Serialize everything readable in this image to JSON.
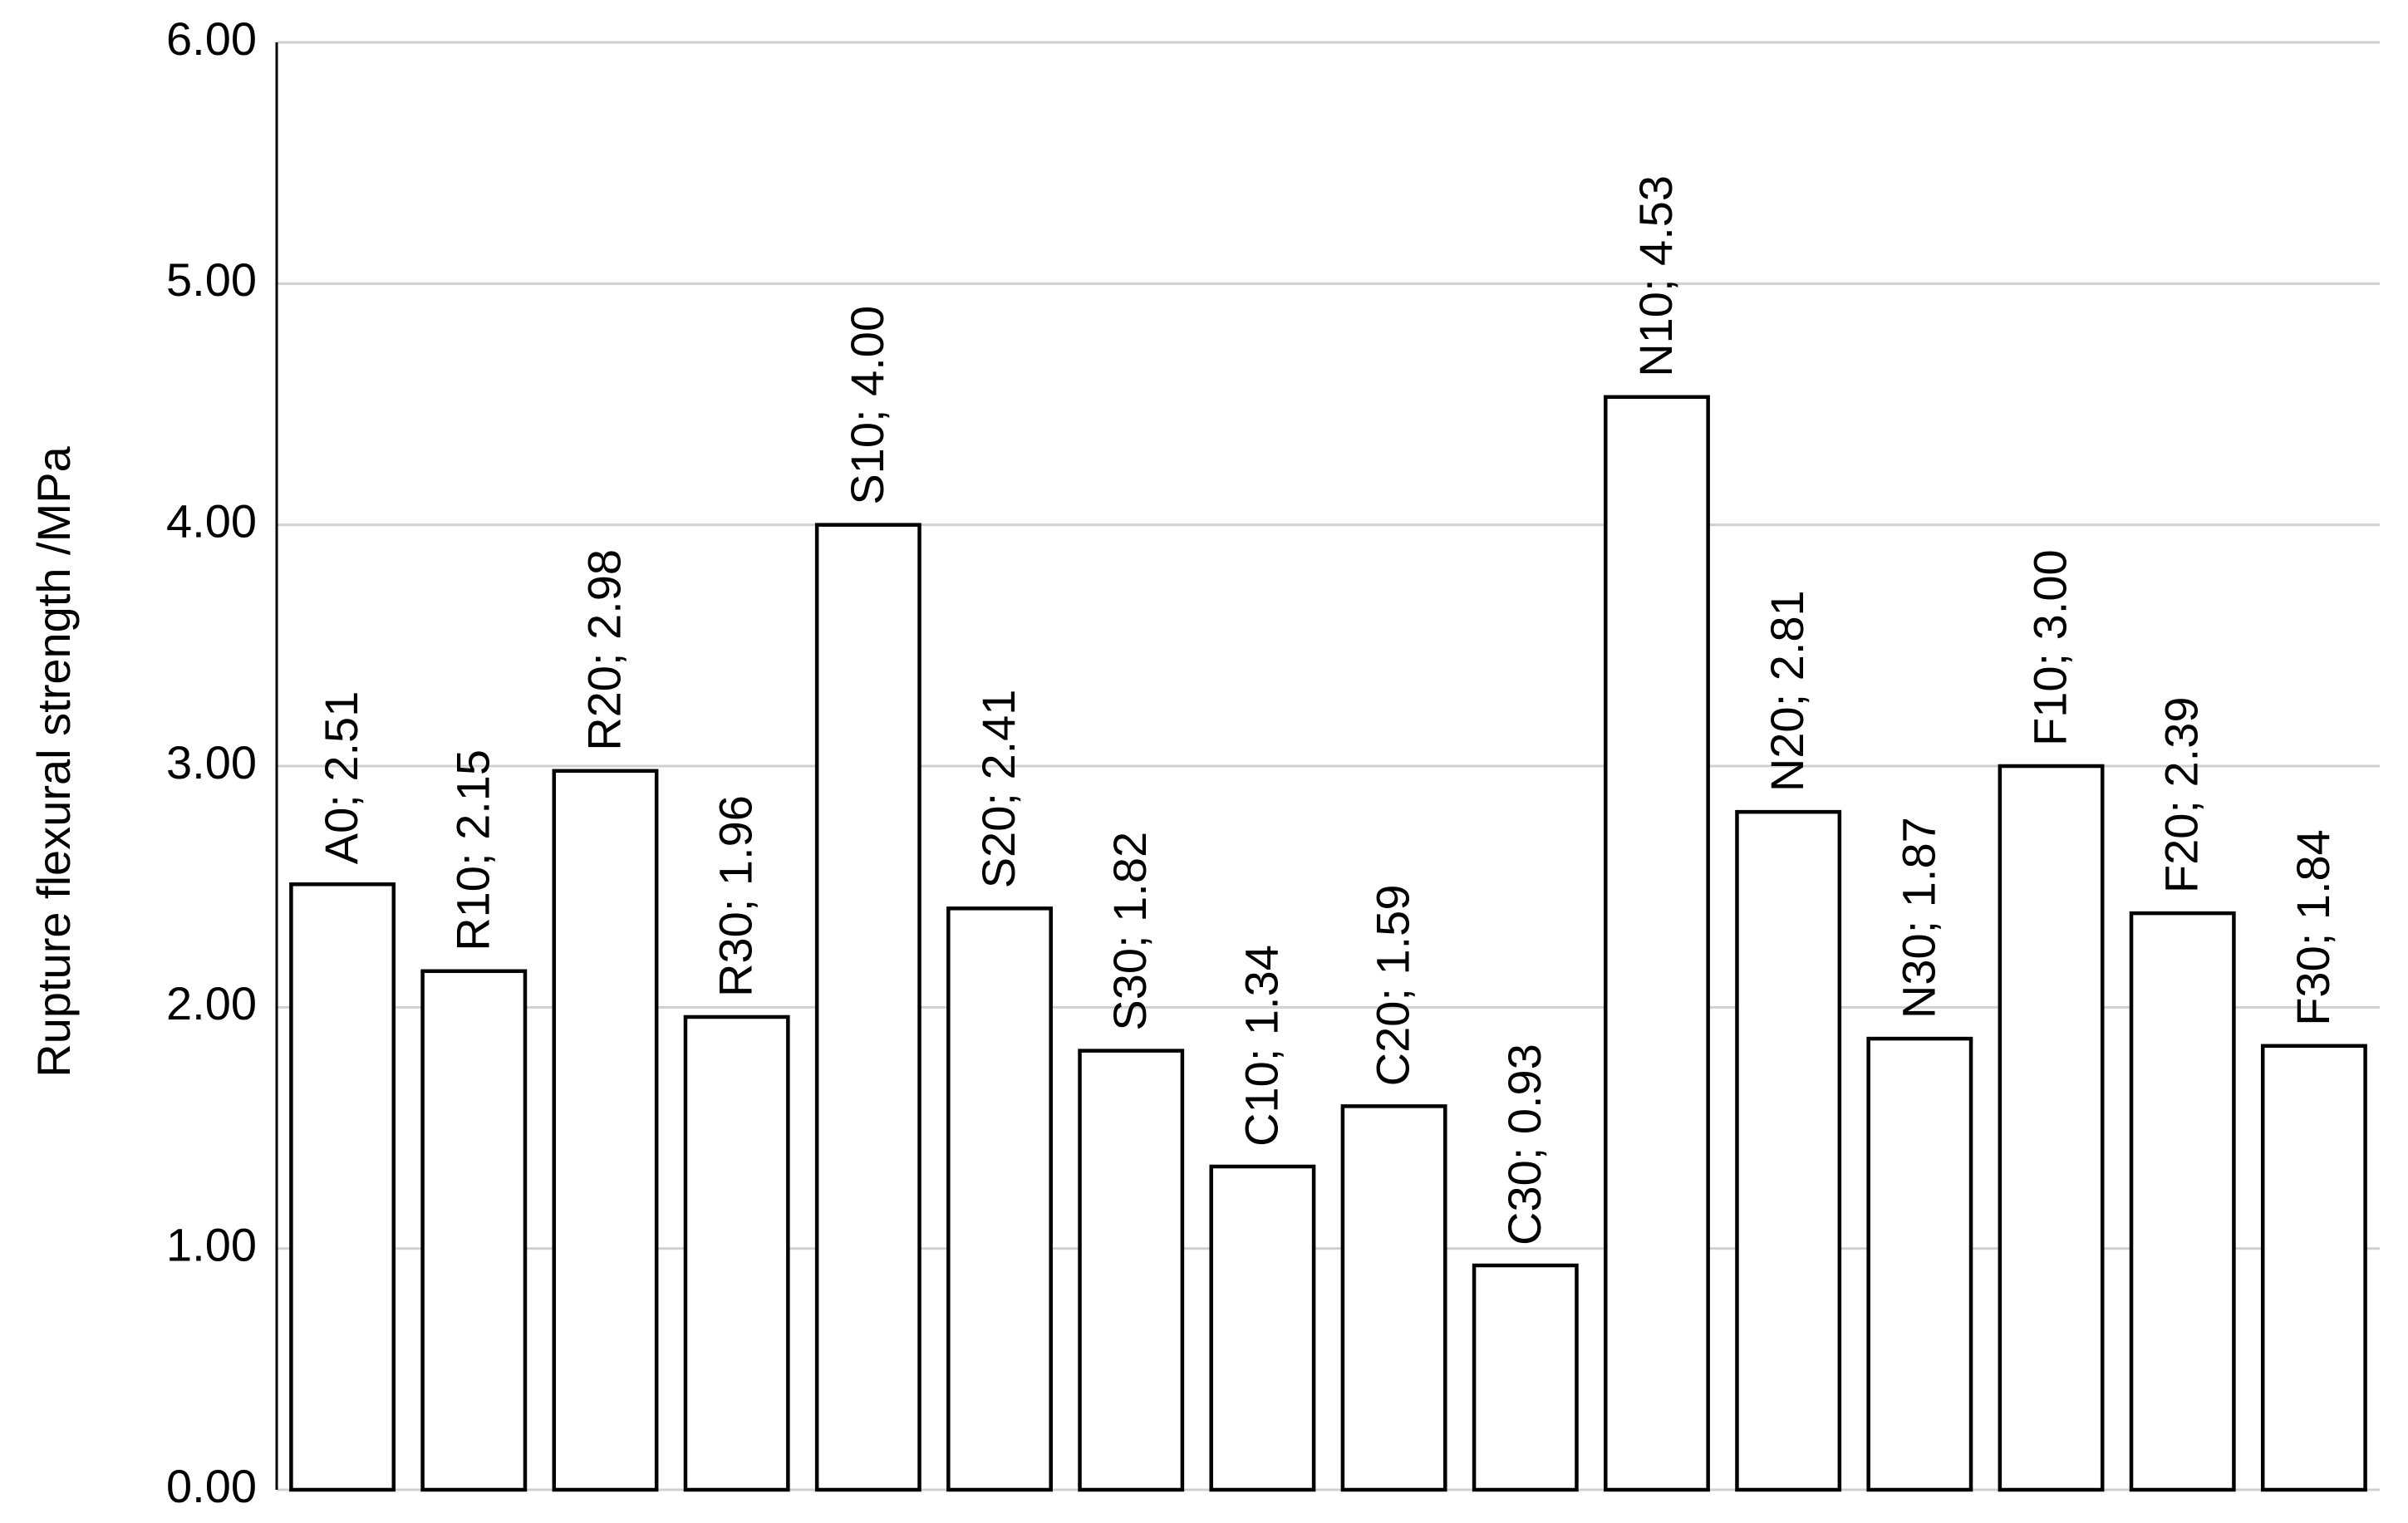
{
  "chart_data": {
    "type": "bar",
    "y_label": "Rupture flexural strength /MPa",
    "values": [
      2.51,
      2.15,
      2.98,
      1.96,
      4.0,
      2.41,
      1.82,
      1.34,
      1.59,
      0.93,
      4.53,
      2.81,
      1.87,
      3.0,
      2.39,
      1.84
    ],
    "value_labels": [
      "A0; 2.51",
      "R10; 2.15",
      "R20; 2.98",
      "R30; 1.96",
      "S10; 4.00",
      "S20; 2.41",
      "S30; 1.82",
      "C10; 1.34",
      "C20; 1.59",
      "C30; 0.93",
      "N10; 4.53",
      "N20; 2.81",
      "N30; 1.87",
      "F10; 3.00",
      "F20; 2.39",
      "F30; 1.84"
    ],
    "color": "#ffffff",
    "ylim": [
      0,
      6
    ],
    "yticks": [
      {
        "value": 0,
        "label": "0.00"
      },
      {
        "value": 1,
        "label": "1.00"
      },
      {
        "value": 2,
        "label": "2.00"
      },
      {
        "value": 3,
        "label": "3.00"
      },
      {
        "value": 4,
        "label": "4.00"
      },
      {
        "value": 5,
        "label": "5.00"
      },
      {
        "value": 6,
        "label": "6.00"
      }
    ],
    "grid": true
  }
}
